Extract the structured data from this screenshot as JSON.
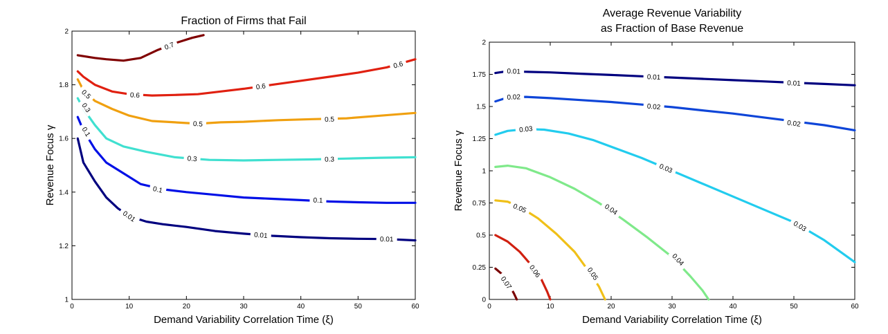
{
  "charts_count": 2,
  "chart_data": [
    {
      "type": "contour",
      "title": "Fraction of Firms that Fail",
      "subtitle": "",
      "xlabel": "Demand Variability Correlation Time (ξ)",
      "ylabel": "Revenue Focus γ",
      "xlim": [
        0,
        60
      ],
      "ylim": [
        1,
        2
      ],
      "xticks": [
        0,
        10,
        20,
        30,
        40,
        50,
        60
      ],
      "yticks": [
        1,
        1.2,
        1.4,
        1.6,
        1.8,
        2
      ],
      "ytick_labels": [
        "1",
        "1.2",
        "1.4",
        "1.6",
        "1.8",
        "2"
      ],
      "grid": false,
      "series": [
        {
          "name": "0.01",
          "color": "#00007f",
          "points": [
            [
              1,
              1.6
            ],
            [
              2,
              1.51
            ],
            [
              4,
              1.44
            ],
            [
              6,
              1.38
            ],
            [
              8,
              1.34
            ],
            [
              10,
              1.31
            ],
            [
              13,
              1.29
            ],
            [
              16,
              1.28
            ],
            [
              20,
              1.27
            ],
            [
              25,
              1.255
            ],
            [
              30,
              1.245
            ],
            [
              35,
              1.237
            ],
            [
              40,
              1.232
            ],
            [
              45,
              1.228
            ],
            [
              50,
              1.226
            ],
            [
              55,
              1.225
            ],
            [
              60,
              1.22
            ]
          ],
          "labels": [
            [
              10,
              1.31
            ],
            [
              33,
              1.24
            ],
            [
              55,
              1.225
            ]
          ]
        },
        {
          "name": "0.1",
          "color": "#0010e6",
          "points": [
            [
              1,
              1.68
            ],
            [
              2,
              1.63
            ],
            [
              4,
              1.56
            ],
            [
              6,
              1.51
            ],
            [
              9,
              1.47
            ],
            [
              12,
              1.43
            ],
            [
              16,
              1.41
            ],
            [
              20,
              1.4
            ],
            [
              25,
              1.39
            ],
            [
              30,
              1.38
            ],
            [
              35,
              1.375
            ],
            [
              40,
              1.37
            ],
            [
              45,
              1.365
            ],
            [
              50,
              1.362
            ],
            [
              55,
              1.36
            ],
            [
              60,
              1.36
            ]
          ],
          "labels": [
            [
              2.5,
              1.625
            ],
            [
              15,
              1.41
            ],
            [
              43,
              1.37
            ]
          ]
        },
        {
          "name": "0.3",
          "color": "#40e0d0",
          "points": [
            [
              1,
              1.75
            ],
            [
              2,
              1.71
            ],
            [
              4,
              1.65
            ],
            [
              6,
              1.6
            ],
            [
              9,
              1.57
            ],
            [
              13,
              1.55
            ],
            [
              18,
              1.53
            ],
            [
              24,
              1.52
            ],
            [
              30,
              1.518
            ],
            [
              36,
              1.52
            ],
            [
              42,
              1.522
            ],
            [
              48,
              1.525
            ],
            [
              54,
              1.528
            ],
            [
              60,
              1.53
            ]
          ],
          "labels": [
            [
              2.5,
              1.715
            ],
            [
              21,
              1.525
            ],
            [
              45,
              1.523
            ]
          ]
        },
        {
          "name": "0.5",
          "color": "#f0a010",
          "points": [
            [
              1,
              1.82
            ],
            [
              2,
              1.78
            ],
            [
              4,
              1.74
            ],
            [
              7,
              1.71
            ],
            [
              10,
              1.685
            ],
            [
              14,
              1.665
            ],
            [
              18,
              1.66
            ],
            [
              22,
              1.655
            ],
            [
              26,
              1.66
            ],
            [
              30,
              1.662
            ],
            [
              36,
              1.668
            ],
            [
              42,
              1.672
            ],
            [
              48,
              1.675
            ],
            [
              54,
              1.685
            ],
            [
              60,
              1.695
            ]
          ],
          "labels": [
            [
              2.5,
              1.765
            ],
            [
              22,
              1.655
            ],
            [
              45,
              1.672
            ]
          ]
        },
        {
          "name": "0.6",
          "color": "#e02010",
          "points": [
            [
              1,
              1.85
            ],
            [
              2,
              1.83
            ],
            [
              4,
              1.8
            ],
            [
              7,
              1.775
            ],
            [
              10,
              1.765
            ],
            [
              14,
              1.76
            ],
            [
              18,
              1.762
            ],
            [
              22,
              1.765
            ],
            [
              26,
              1.775
            ],
            [
              30,
              1.785
            ],
            [
              35,
              1.8
            ],
            [
              40,
              1.815
            ],
            [
              45,
              1.83
            ],
            [
              50,
              1.845
            ],
            [
              55,
              1.865
            ],
            [
              60,
              1.895
            ]
          ],
          "labels": [
            [
              11,
              1.762
            ],
            [
              33,
              1.794
            ],
            [
              57,
              1.875
            ]
          ]
        },
        {
          "name": "0.7",
          "color": "#800000",
          "points": [
            [
              1,
              1.91
            ],
            [
              4,
              1.9
            ],
            [
              6,
              1.895
            ],
            [
              9,
              1.89
            ],
            [
              12,
              1.9
            ],
            [
              15,
              1.93
            ],
            [
              18,
              1.955
            ],
            [
              21,
              1.975
            ],
            [
              23,
              1.985
            ]
          ],
          "labels": [
            [
              17,
              1.945
            ]
          ]
        }
      ]
    },
    {
      "type": "contour",
      "title": "Average Revenue Variability",
      "subtitle": "as Fraction of Base Revenue",
      "xlabel": "Demand Variability Correlation Time (ξ)",
      "ylabel": "Revenue Focus γ",
      "xlim": [
        0,
        60
      ],
      "ylim": [
        0,
        2
      ],
      "xticks": [
        0,
        10,
        20,
        30,
        40,
        50,
        60
      ],
      "yticks": [
        0,
        0.25,
        0.5,
        0.75,
        1,
        1.25,
        1.5,
        1.75,
        2
      ],
      "ytick_labels": [
        "0",
        "0.25",
        "0.5",
        "0.75",
        "1",
        "1.25",
        "1.5",
        "1.75",
        "2"
      ],
      "grid": false,
      "series": [
        {
          "name": "0.01",
          "color": "#00007f",
          "points": [
            [
              1,
              1.76
            ],
            [
              3,
              1.775
            ],
            [
              6,
              1.77
            ],
            [
              10,
              1.765
            ],
            [
              15,
              1.755
            ],
            [
              20,
              1.745
            ],
            [
              25,
              1.735
            ],
            [
              30,
              1.725
            ],
            [
              35,
              1.715
            ],
            [
              40,
              1.705
            ],
            [
              45,
              1.695
            ],
            [
              50,
              1.685
            ],
            [
              55,
              1.675
            ],
            [
              60,
              1.665
            ]
          ],
          "labels": [
            [
              4,
              1.775
            ],
            [
              27,
              1.73
            ],
            [
              50,
              1.683
            ]
          ]
        },
        {
          "name": "0.02",
          "color": "#0e45d8",
          "points": [
            [
              1,
              1.54
            ],
            [
              3,
              1.57
            ],
            [
              6,
              1.575
            ],
            [
              10,
              1.565
            ],
            [
              15,
              1.55
            ],
            [
              20,
              1.535
            ],
            [
              25,
              1.515
            ],
            [
              30,
              1.495
            ],
            [
              35,
              1.47
            ],
            [
              40,
              1.445
            ],
            [
              45,
              1.415
            ],
            [
              50,
              1.385
            ],
            [
              55,
              1.355
            ],
            [
              60,
              1.315
            ]
          ],
          "labels": [
            [
              4,
              1.575
            ],
            [
              27,
              1.5
            ],
            [
              50,
              1.37
            ]
          ]
        },
        {
          "name": "0.03",
          "color": "#22ccee",
          "points": [
            [
              1,
              1.28
            ],
            [
              3,
              1.31
            ],
            [
              6,
              1.325
            ],
            [
              9,
              1.32
            ],
            [
              13,
              1.29
            ],
            [
              17,
              1.24
            ],
            [
              21,
              1.17
            ],
            [
              25,
              1.1
            ],
            [
              30,
              1.0
            ],
            [
              35,
              0.9
            ],
            [
              40,
              0.8
            ],
            [
              45,
              0.7
            ],
            [
              50,
              0.6
            ],
            [
              55,
              0.46
            ],
            [
              60,
              0.29
            ]
          ],
          "labels": [
            [
              6,
              1.325
            ],
            [
              29,
              1.02
            ],
            [
              51,
              0.57
            ]
          ]
        },
        {
          "name": "0.04",
          "color": "#7fe98a",
          "points": [
            [
              1,
              1.03
            ],
            [
              3,
              1.04
            ],
            [
              6,
              1.02
            ],
            [
              10,
              0.95
            ],
            [
              14,
              0.86
            ],
            [
              18,
              0.75
            ],
            [
              22,
              0.62
            ],
            [
              26,
              0.48
            ],
            [
              30,
              0.33
            ],
            [
              33,
              0.18
            ],
            [
              35,
              0.07
            ],
            [
              36,
              0.0
            ]
          ],
          "labels": [
            [
              20,
              0.7
            ],
            [
              31,
              0.31
            ]
          ]
        },
        {
          "name": "0.05",
          "color": "#f0c018",
          "points": [
            [
              1,
              0.77
            ],
            [
              3,
              0.76
            ],
            [
              5,
              0.72
            ],
            [
              8,
              0.63
            ],
            [
              11,
              0.51
            ],
            [
              14,
              0.37
            ],
            [
              16,
              0.24
            ],
            [
              18,
              0.1
            ],
            [
              19,
              0.0
            ]
          ],
          "labels": [
            [
              5,
              0.71
            ],
            [
              17,
              0.2
            ]
          ]
        },
        {
          "name": "0.06",
          "color": "#d02010",
          "points": [
            [
              1,
              0.5
            ],
            [
              3,
              0.45
            ],
            [
              5,
              0.37
            ],
            [
              7,
              0.26
            ],
            [
              8.5,
              0.16
            ],
            [
              9.5,
              0.06
            ],
            [
              10,
              0.0
            ]
          ],
          "labels": [
            [
              7.5,
              0.22
            ]
          ]
        },
        {
          "name": "0.07",
          "color": "#7a0000",
          "points": [
            [
              1,
              0.24
            ],
            [
              2,
              0.2
            ],
            [
              3,
              0.13
            ],
            [
              4,
              0.05
            ],
            [
              4.5,
              0.0
            ]
          ],
          "labels": [
            [
              2.8,
              0.13
            ]
          ]
        }
      ]
    }
  ]
}
